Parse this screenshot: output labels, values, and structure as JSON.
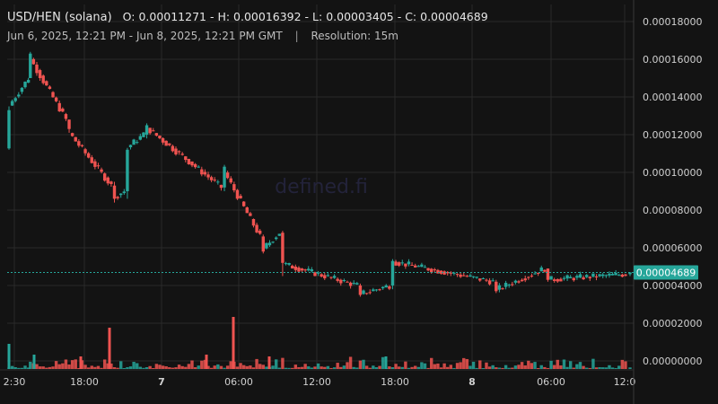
{
  "header": {
    "pair": "USD/HEN (solana)",
    "ohlc": "O: 0.00011271 - H: 0.00016392 - L: 0.00003405 - C: 0.00004689",
    "range": "Jun 6, 2025, 12:21 PM - Jun 8, 2025, 12:21 PM GMT",
    "separator": "|",
    "resolution": "Resolution: 15m"
  },
  "watermark": "defined.fi",
  "colors": {
    "background": "#131313",
    "up": "#26a69a",
    "down": "#ef5350",
    "grid": "#2a2a2a",
    "price_line": "#26a69a",
    "price_label_bg": "#26a69a"
  },
  "chart_data": {
    "type": "candlestick",
    "ylim": [
      0,
      0.00018
    ],
    "y_ticks": [
      "0.00018000",
      "0.00016000",
      "0.00014000",
      "0.00012000",
      "0.00010000",
      "0.00008000",
      "0.00006000",
      "0.00004000",
      "0.00002000",
      "0.00000000"
    ],
    "x_ticks": [
      {
        "label": "2:30",
        "bold": false
      },
      {
        "label": "18:00",
        "bold": false
      },
      {
        "label": "7",
        "bold": true
      },
      {
        "label": "06:00",
        "bold": false
      },
      {
        "label": "12:00",
        "bold": false
      },
      {
        "label": "18:00",
        "bold": false
      },
      {
        "label": "8",
        "bold": true
      },
      {
        "label": "06:00",
        "bold": false
      },
      {
        "label": "12:0",
        "bold": false
      }
    ],
    "current_price": 4.689e-05,
    "current_price_label": "0.00004689",
    "key_candles": [
      {
        "t": "12:21",
        "o": 0.00011271,
        "c": 0.000133,
        "h": 0.000135,
        "l": 0.000112
      },
      {
        "t": "14:00",
        "o": 0.00015,
        "c": 0.000163,
        "h": 0.00016392,
        "l": 0.00015
      },
      {
        "t": "17:00",
        "o": 0.000128,
        "c": 0.000123,
        "h": 0.000128,
        "l": 0.000121
      },
      {
        "t": "20:30",
        "o": 9.3e-05,
        "c": 8.6e-05,
        "h": 9.5e-05,
        "l": 8.4e-05
      },
      {
        "t": "21:30",
        "o": 9e-05,
        "c": 0.000112,
        "h": 0.000113,
        "l": 8.6e-05
      },
      {
        "t": "23:00",
        "o": 0.00012,
        "c": 0.000125,
        "h": 0.000126,
        "l": 0.000118
      },
      {
        "t": "05:00",
        "o": 9.2e-05,
        "c": 0.000103,
        "h": 0.000104,
        "l": 9e-05
      },
      {
        "t": "08:00",
        "o": 6.6e-05,
        "c": 5.8e-05,
        "h": 6.7e-05,
        "l": 5.7e-05
      },
      {
        "t": "09:30",
        "o": 6.8e-05,
        "c": 5.2e-05,
        "h": 6.9e-05,
        "l": 4.5e-05
      },
      {
        "t": "15:30",
        "o": 4e-05,
        "c": 3.5e-05,
        "h": 4.1e-05,
        "l": 3.405e-05
      },
      {
        "t": "18:00",
        "o": 4e-05,
        "c": 5.3e-05,
        "h": 5.4e-05,
        "l": 3.8e-05
      },
      {
        "t": "02:00",
        "o": 4.2e-05,
        "c": 3.7e-05,
        "h": 4.3e-05,
        "l": 3.6e-05
      },
      {
        "t": "06:00",
        "o": 4.9e-05,
        "c": 4.3e-05,
        "h": 4.9e-05,
        "l": 4.2e-05
      },
      {
        "t": "12:21",
        "o": 4.6e-05,
        "c": 4.689e-05,
        "h": 4.7e-05,
        "l": 4.5e-05
      }
    ]
  }
}
